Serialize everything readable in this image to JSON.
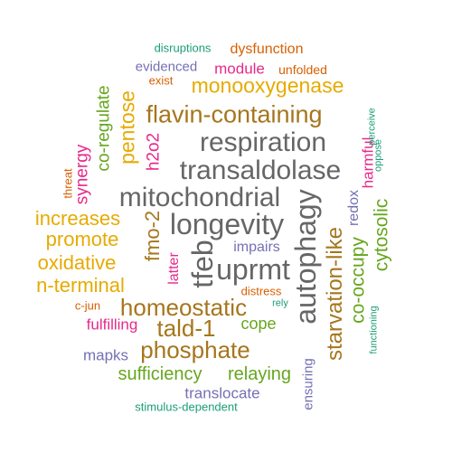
{
  "palette": {
    "teal": "#1b9e77",
    "orange": "#d95f02",
    "purple": "#7570b3",
    "pink": "#e7298a",
    "green": "#66a61e",
    "gold": "#e6ab02",
    "brown": "#a6761d",
    "gray": "#666666"
  },
  "words": [
    {
      "text": "disruptions",
      "color": "teal",
      "rotated": false
    },
    {
      "text": "dysfunction",
      "color": "orange",
      "rotated": false
    },
    {
      "text": "evidenced",
      "color": "purple",
      "rotated": false
    },
    {
      "text": "module",
      "color": "pink",
      "rotated": false
    },
    {
      "text": "unfolded",
      "color": "orange",
      "rotated": false
    },
    {
      "text": "exist",
      "color": "orange",
      "rotated": false
    },
    {
      "text": "monooxygenase",
      "color": "gold",
      "rotated": false
    },
    {
      "text": "flavin-containing",
      "color": "brown",
      "rotated": false
    },
    {
      "text": "respiration",
      "color": "gray",
      "rotated": false
    },
    {
      "text": "transaldolase",
      "color": "gray",
      "rotated": false
    },
    {
      "text": "mitochondrial",
      "color": "gray",
      "rotated": false
    },
    {
      "text": "longevity",
      "color": "gray",
      "rotated": false
    },
    {
      "text": "increases",
      "color": "gold",
      "rotated": false
    },
    {
      "text": "promote",
      "color": "gold",
      "rotated": false
    },
    {
      "text": "oxidative",
      "color": "gold",
      "rotated": false
    },
    {
      "text": "n-terminal",
      "color": "gold",
      "rotated": false
    },
    {
      "text": "impairs",
      "color": "purple",
      "rotated": false
    },
    {
      "text": "uprmt",
      "color": "gray",
      "rotated": false
    },
    {
      "text": "distress",
      "color": "orange",
      "rotated": false
    },
    {
      "text": "c-jun",
      "color": "orange",
      "rotated": false
    },
    {
      "text": "rely",
      "color": "teal",
      "rotated": false
    },
    {
      "text": "homeostatic",
      "color": "brown",
      "rotated": false
    },
    {
      "text": "tald-1",
      "color": "brown",
      "rotated": false
    },
    {
      "text": "fulfilling",
      "color": "pink",
      "rotated": false
    },
    {
      "text": "cope",
      "color": "green",
      "rotated": false
    },
    {
      "text": "phosphate",
      "color": "brown",
      "rotated": false
    },
    {
      "text": "mapks",
      "color": "purple",
      "rotated": false
    },
    {
      "text": "sufficiency",
      "color": "green",
      "rotated": false
    },
    {
      "text": "relaying",
      "color": "green",
      "rotated": false
    },
    {
      "text": "translocate",
      "color": "purple",
      "rotated": false
    },
    {
      "text": "stimulus-dependent",
      "color": "teal",
      "rotated": false
    },
    {
      "text": "co-regulate",
      "color": "green",
      "rotated": true
    },
    {
      "text": "pentose",
      "color": "gold",
      "rotated": true
    },
    {
      "text": "h2o2",
      "color": "pink",
      "rotated": true
    },
    {
      "text": "synergy",
      "color": "pink",
      "rotated": true
    },
    {
      "text": "threat",
      "color": "orange",
      "rotated": true
    },
    {
      "text": "fmo-2",
      "color": "brown",
      "rotated": true
    },
    {
      "text": "latter",
      "color": "pink",
      "rotated": true
    },
    {
      "text": "tfeb",
      "color": "gray",
      "rotated": true
    },
    {
      "text": "autophagy",
      "color": "gray",
      "rotated": true
    },
    {
      "text": "starvation-like",
      "color": "brown",
      "rotated": true
    },
    {
      "text": "co-occupy",
      "color": "green",
      "rotated": true
    },
    {
      "text": "cytosolic",
      "color": "green",
      "rotated": true
    },
    {
      "text": "redox",
      "color": "purple",
      "rotated": true
    },
    {
      "text": "harmful",
      "color": "pink",
      "rotated": true
    },
    {
      "text": "oppose",
      "color": "teal",
      "rotated": true
    },
    {
      "text": "perceive",
      "color": "teal",
      "rotated": true
    },
    {
      "text": "ensuring",
      "color": "purple",
      "rotated": true
    },
    {
      "text": "functioning",
      "color": "teal",
      "rotated": true
    }
  ]
}
